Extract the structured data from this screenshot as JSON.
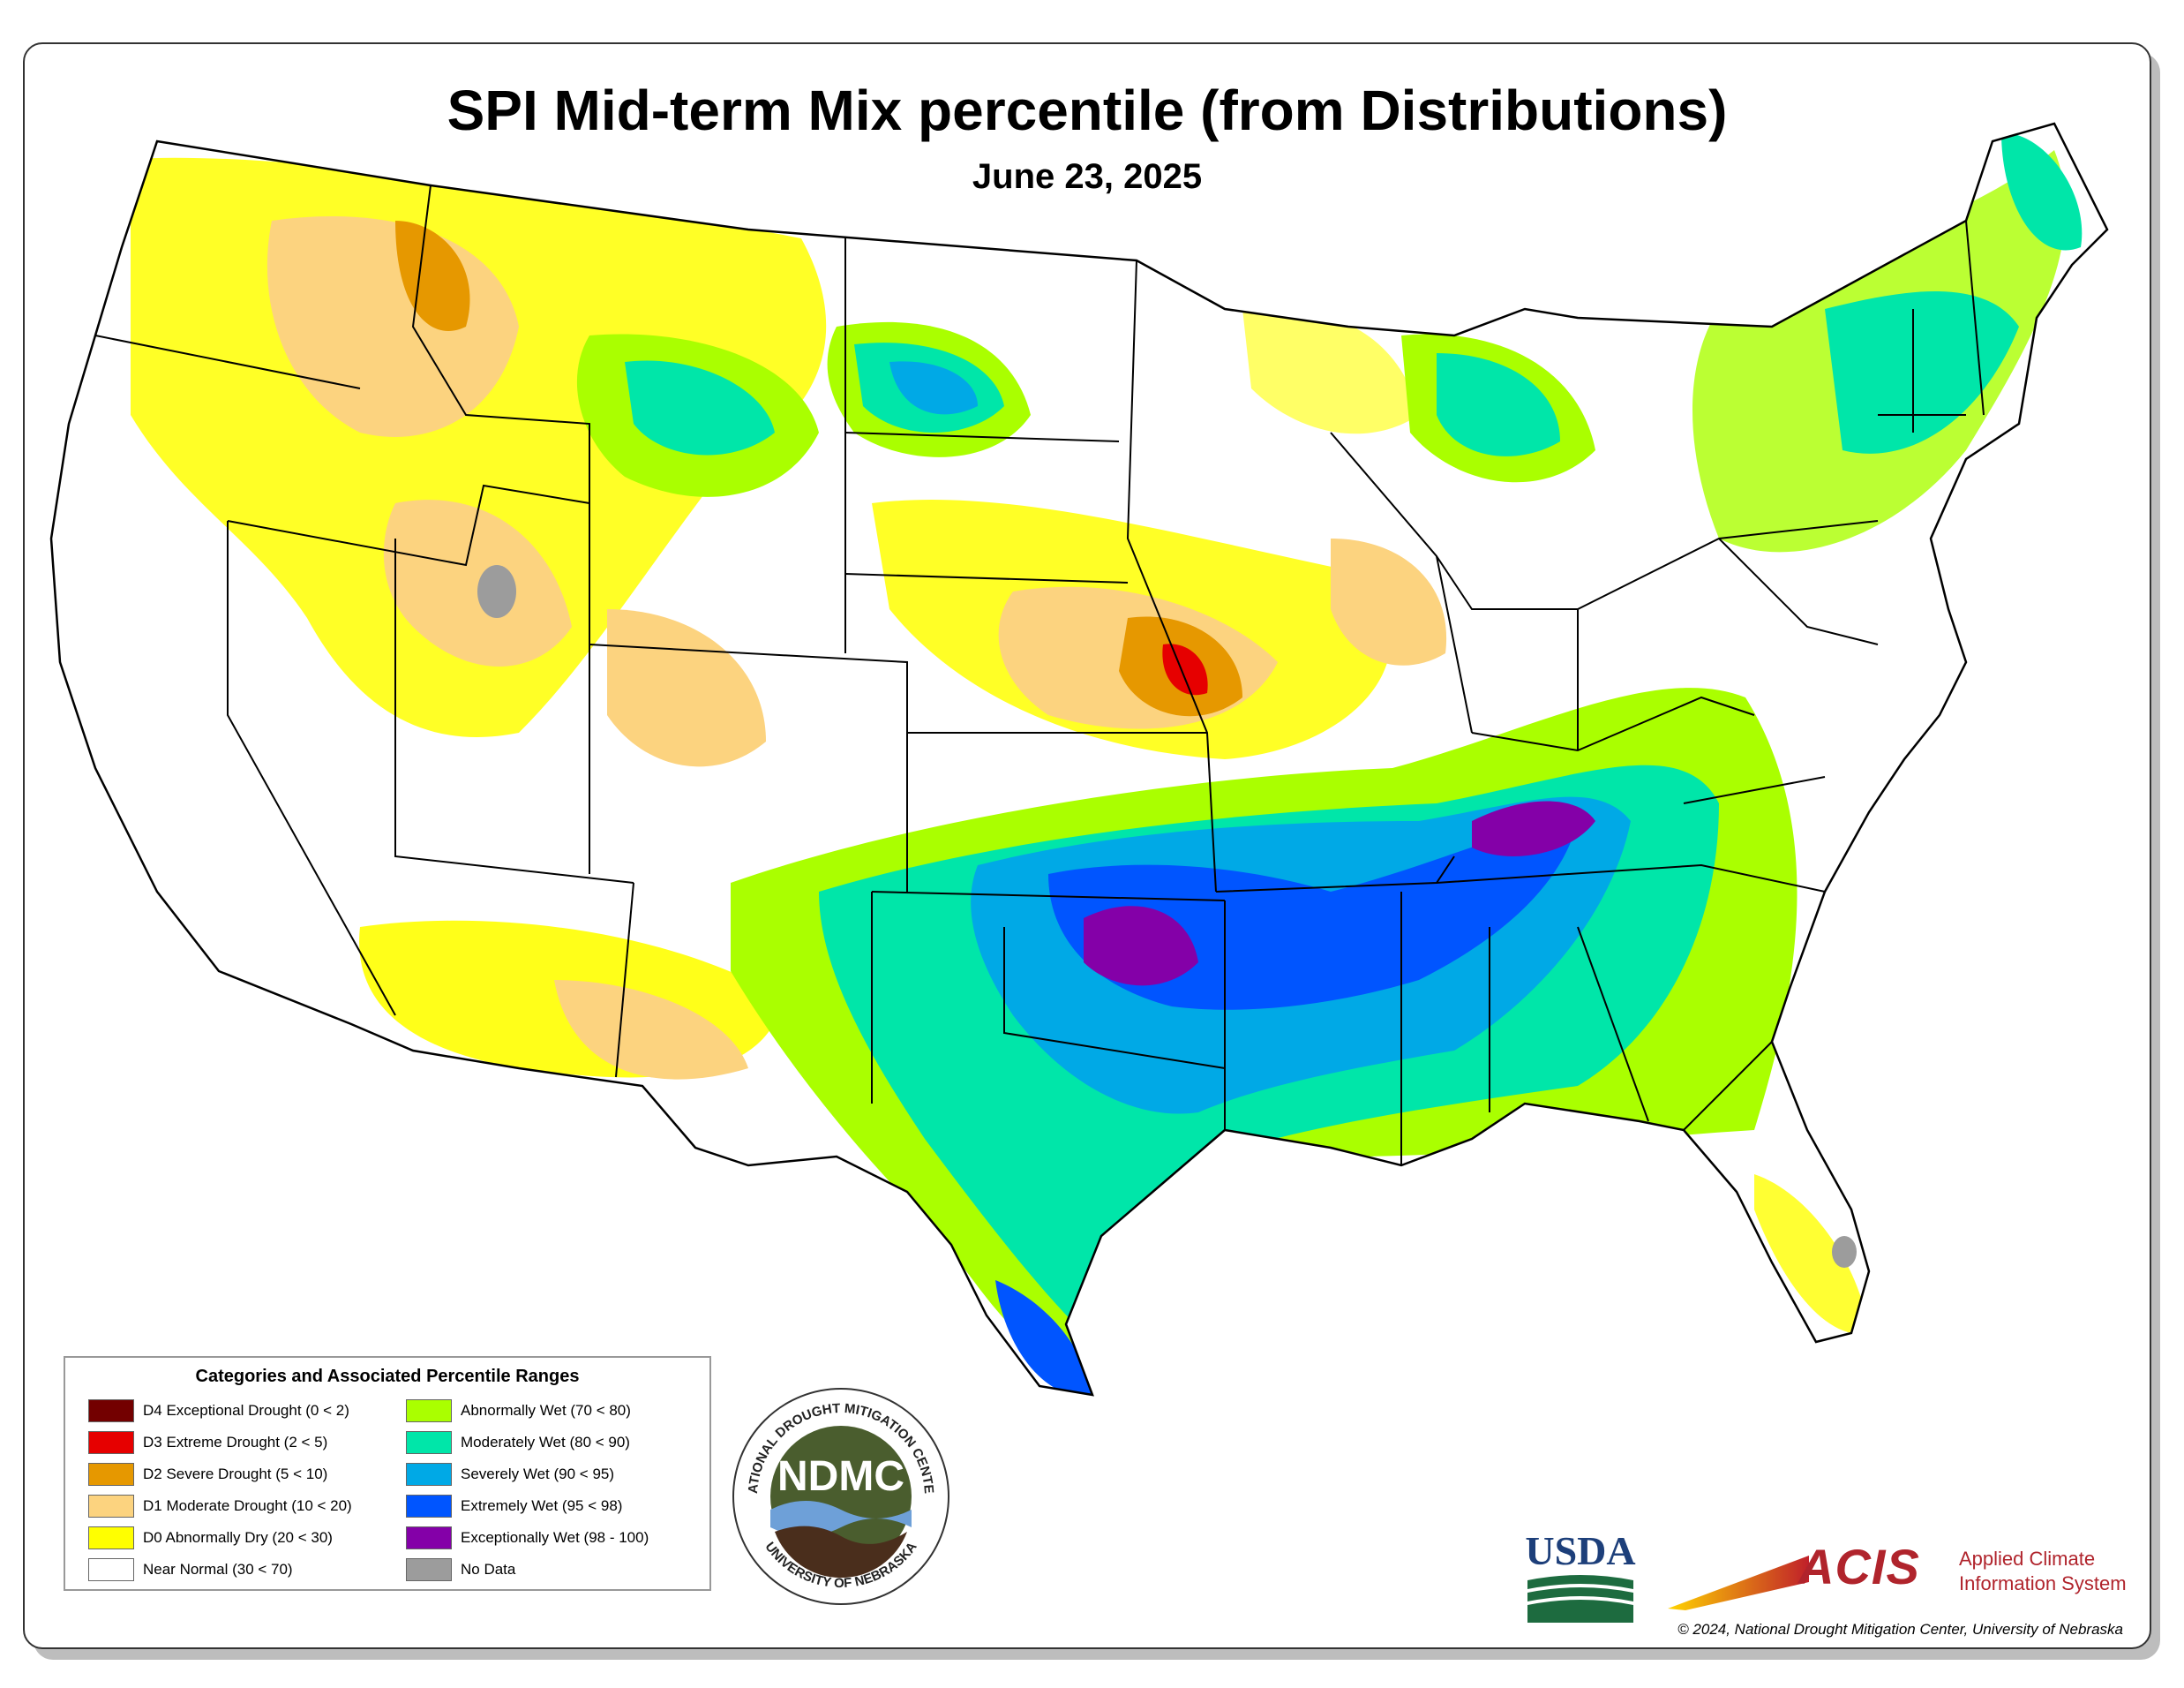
{
  "title": "SPI Mid-term Mix percentile (from Distributions)",
  "date": "June 23, 2025",
  "legend": {
    "title": "Categories and Associated Percentile Ranges",
    "dry": [
      {
        "label": "D4 Exceptional Drought (0 < 2)",
        "color": "#730000"
      },
      {
        "label": "D3 Extreme Drought (2 < 5)",
        "color": "#e60000"
      },
      {
        "label": "D2 Severe Drought (5 < 10)",
        "color": "#e69800"
      },
      {
        "label": "D1 Moderate Drought (10 < 20)",
        "color": "#fcd37f"
      },
      {
        "label": "D0 Abnormally Dry (20 < 30)",
        "color": "#ffff00"
      },
      {
        "label": "Near Normal (30 < 70)",
        "color": "#ffffff"
      }
    ],
    "wet": [
      {
        "label": "Abnormally Wet (70 < 80)",
        "color": "#aaff00"
      },
      {
        "label": "Moderately Wet (80 < 90)",
        "color": "#00e6a9"
      },
      {
        "label": "Severely Wet (90 < 95)",
        "color": "#00a9e6"
      },
      {
        "label": "Extremely Wet (95 < 98)",
        "color": "#0055ff"
      },
      {
        "label": "Exceptionally Wet (98 - 100)",
        "color": "#8400a8"
      },
      {
        "label": "No Data",
        "color": "#9c9c9c"
      }
    ]
  },
  "logos": {
    "ndmc_text": "NDMC",
    "ndmc_ring_top": "NATIONAL DROUGHT MITIGATION CENTER",
    "ndmc_ring_bottom": "UNIVERSITY OF NEBRASKA",
    "usda": "USDA",
    "acis": "ACIS",
    "acis_line1": "Applied Climate",
    "acis_line2": "Information System"
  },
  "copyright": "© 2024, National Drought Mitigation Center, University of Nebraska"
}
